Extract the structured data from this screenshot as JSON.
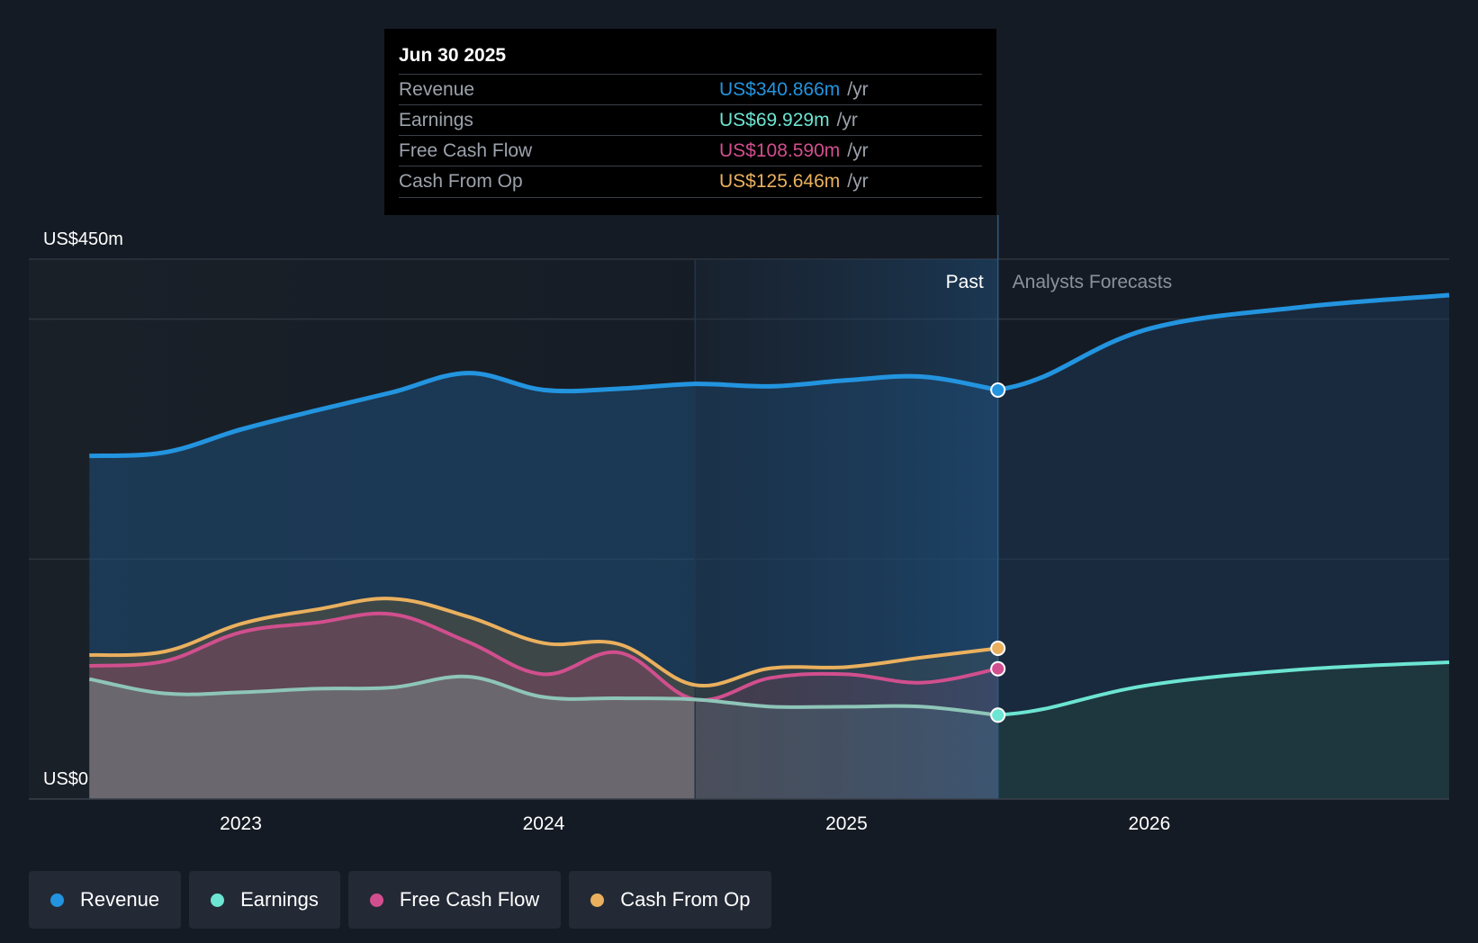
{
  "tooltip": {
    "date": "Jun 30 2025",
    "rows": [
      {
        "label": "Revenue",
        "value": "US$340.866m",
        "unit": "/yr",
        "color": "#2394df"
      },
      {
        "label": "Earnings",
        "value": "US$69.929m",
        "unit": "/yr",
        "color": "#6ce5d2"
      },
      {
        "label": "Free Cash Flow",
        "value": "US$108.590m",
        "unit": "/yr",
        "color": "#d14f8e"
      },
      {
        "label": "Cash From Op",
        "value": "US$125.646m",
        "unit": "/yr",
        "color": "#eab05e"
      }
    ]
  },
  "legend": [
    {
      "label": "Revenue",
      "color": "#2394df"
    },
    {
      "label": "Earnings",
      "color": "#6ce5d2"
    },
    {
      "label": "Free Cash Flow",
      "color": "#d14f8e"
    },
    {
      "label": "Cash From Op",
      "color": "#eab05e"
    }
  ],
  "chart_data": {
    "type": "area",
    "title": "",
    "y_axis_labels": {
      "top": "US$450m",
      "bottom": "US$0"
    },
    "ylim": [
      0,
      450
    ],
    "xlim": [
      2022.3,
      2026.99
    ],
    "x_ticks": [
      2023,
      2024,
      2025,
      2026
    ],
    "x_tick_labels": [
      "2023",
      "2024",
      "2025",
      "2026"
    ],
    "past_label": "Past",
    "forecast_label": "Analysts Forecasts",
    "past_end": 2025.5,
    "highlight_start": 2024.5,
    "series": [
      {
        "name": "Revenue",
        "color": "#2394df",
        "x": [
          2022.5,
          2022.75,
          2023.0,
          2023.25,
          2023.5,
          2023.75,
          2024.0,
          2024.25,
          2024.5,
          2024.75,
          2025.0,
          2025.25,
          2025.5
        ],
        "values": [
          286,
          289,
          308,
          324,
          339,
          355,
          341,
          342,
          346,
          344,
          349,
          352,
          340.866
        ],
        "forecast_x": [
          2025.5,
          2025.65,
          2026.0,
          2026.5,
          2026.99
        ],
        "forecast_values": [
          340.866,
          352,
          392,
          410,
          420
        ]
      },
      {
        "name": "Earnings",
        "color": "#6ce5d2",
        "x": [
          2022.5,
          2022.75,
          2023.0,
          2023.25,
          2023.5,
          2023.75,
          2024.0,
          2024.25,
          2024.5,
          2024.75,
          2025.0,
          2025.25,
          2025.5
        ],
        "values": [
          100,
          88,
          89,
          92,
          93,
          102,
          85,
          84,
          83,
          77,
          77,
          77,
          69.929
        ],
        "forecast_x": [
          2025.5,
          2025.65,
          2026.0,
          2026.5,
          2026.99
        ],
        "forecast_values": [
          69.929,
          75,
          95,
          108,
          114
        ]
      },
      {
        "name": "Free Cash Flow",
        "color": "#d14f8e",
        "x": [
          2022.5,
          2022.75,
          2023.0,
          2023.25,
          2023.5,
          2023.75,
          2024.0,
          2024.25,
          2024.5,
          2024.75,
          2025.0,
          2025.25,
          2025.5
        ],
        "values": [
          111,
          115,
          139,
          147,
          154,
          131,
          104,
          122,
          83,
          101,
          104,
          97,
          108.59
        ]
      },
      {
        "name": "Cash From Op",
        "color": "#eab05e",
        "x": [
          2022.5,
          2022.75,
          2023.0,
          2023.25,
          2023.5,
          2023.75,
          2024.0,
          2024.25,
          2024.5,
          2024.75,
          2025.0,
          2025.25,
          2025.5
        ],
        "values": [
          120,
          123,
          146,
          158,
          167,
          152,
          130,
          129,
          95,
          109,
          110,
          118,
          125.646
        ]
      }
    ]
  }
}
